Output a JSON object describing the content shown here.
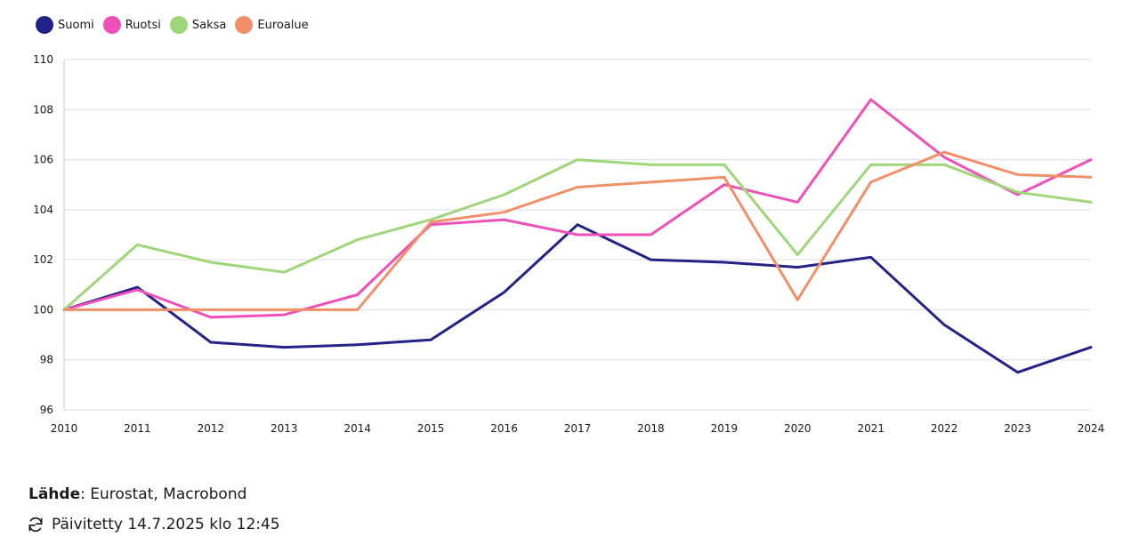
{
  "chart_data": {
    "type": "line",
    "title": "",
    "xlabel": "",
    "ylabel": "",
    "x": [
      "2010",
      "2011",
      "2012",
      "2013",
      "2014",
      "2015",
      "2016",
      "2017",
      "2018",
      "2019",
      "2020",
      "2021",
      "2022",
      "2023",
      "2024"
    ],
    "ylim": [
      96,
      110
    ],
    "yticks": [
      96,
      98,
      100,
      102,
      104,
      106,
      108,
      110
    ],
    "grid": true,
    "legend_position": "top-left",
    "series": [
      {
        "name": "Suomi",
        "color": "#232288",
        "values": [
          100,
          100.9,
          98.7,
          98.5,
          98.6,
          98.8,
          100.7,
          103.4,
          102.0,
          101.9,
          101.7,
          102.1,
          99.4,
          97.5,
          98.5
        ]
      },
      {
        "name": "Ruotsi",
        "color": "#ee4fb8",
        "values": [
          100,
          100.8,
          99.7,
          99.8,
          100.6,
          103.4,
          103.6,
          103.0,
          103.0,
          105.0,
          104.3,
          108.4,
          106.1,
          104.6,
          106.0
        ]
      },
      {
        "name": "Saksa",
        "color": "#9fd67a",
        "values": [
          100,
          102.6,
          101.9,
          101.5,
          102.8,
          103.6,
          104.6,
          106.0,
          105.8,
          105.8,
          102.2,
          105.8,
          105.8,
          104.7,
          104.3
        ]
      },
      {
        "name": "Euroalue",
        "color": "#f19068",
        "values": [
          100,
          100,
          100,
          100,
          100,
          103.5,
          103.9,
          104.9,
          105.1,
          105.3,
          100.4,
          105.1,
          106.3,
          105.4,
          105.3
        ]
      }
    ]
  },
  "footer": {
    "source_label": "Lähde",
    "source_text": ": Eurostat, Macrobond",
    "updated_text": "Päivitetty 14.7.2025 klo 12:45",
    "icon": "refresh-icon"
  }
}
